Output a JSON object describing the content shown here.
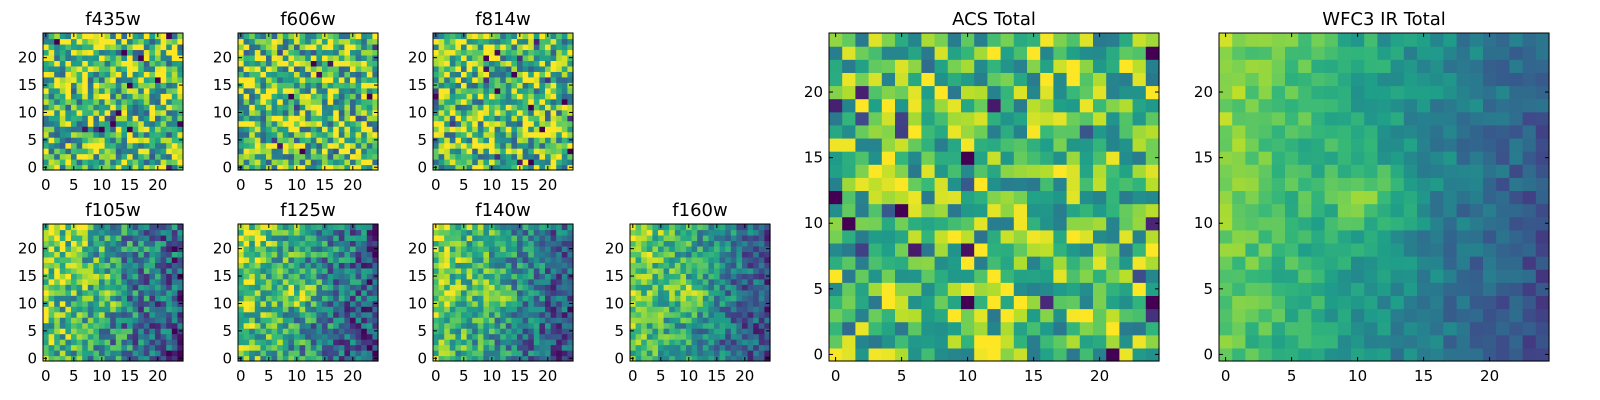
{
  "chart_data": [
    {
      "type": "heatmap",
      "title": "f435w",
      "xticks": [
        "0",
        "5",
        "10",
        "15",
        "20"
      ],
      "yticks": [
        "0",
        "5",
        "10",
        "15",
        "20"
      ],
      "xlim": [
        -0.5,
        24.5
      ],
      "ylim": [
        -0.5,
        24.5
      ],
      "grid_size": 25,
      "colormap": "viridis",
      "pattern": "noise",
      "noise": 0.42,
      "seed": 11
    },
    {
      "type": "heatmap",
      "title": "f606w",
      "xticks": [
        "0",
        "5",
        "10",
        "15",
        "20"
      ],
      "yticks": [
        "0",
        "5",
        "10",
        "15",
        "20"
      ],
      "xlim": [
        -0.5,
        24.5
      ],
      "ylim": [
        -0.5,
        24.5
      ],
      "grid_size": 25,
      "colormap": "viridis",
      "pattern": "noise",
      "noise": 0.42,
      "seed": 23
    },
    {
      "type": "heatmap",
      "title": "f814w",
      "xticks": [
        "0",
        "5",
        "10",
        "15",
        "20"
      ],
      "yticks": [
        "0",
        "5",
        "10",
        "15",
        "20"
      ],
      "xlim": [
        -0.5,
        24.5
      ],
      "ylim": [
        -0.5,
        24.5
      ],
      "grid_size": 25,
      "colormap": "viridis",
      "pattern": "noise",
      "noise": 0.42,
      "seed": 37
    },
    {
      "type": "heatmap",
      "title": "f105w",
      "xticks": [
        "0",
        "5",
        "10",
        "15",
        "20"
      ],
      "yticks": [
        "0",
        "5",
        "10",
        "15",
        "20"
      ],
      "xlim": [
        -0.5,
        24.5
      ],
      "ylim": [
        -0.5,
        24.5
      ],
      "grid_size": 25,
      "colormap": "viridis",
      "pattern": "gradient",
      "noise": 0.32,
      "seed": 41
    },
    {
      "type": "heatmap",
      "title": "f125w",
      "xticks": [
        "0",
        "5",
        "10",
        "15",
        "20"
      ],
      "yticks": [
        "0",
        "5",
        "10",
        "15",
        "20"
      ],
      "xlim": [
        -0.5,
        24.5
      ],
      "ylim": [
        -0.5,
        24.5
      ],
      "grid_size": 25,
      "colormap": "viridis",
      "pattern": "gradient",
      "noise": 0.3,
      "seed": 53
    },
    {
      "type": "heatmap",
      "title": "f140w",
      "xticks": [
        "0",
        "5",
        "10",
        "15",
        "20"
      ],
      "yticks": [
        "0",
        "5",
        "10",
        "15",
        "20"
      ],
      "xlim": [
        -0.5,
        24.5
      ],
      "ylim": [
        -0.5,
        24.5
      ],
      "grid_size": 25,
      "colormap": "viridis",
      "pattern": "gradient",
      "noise": 0.26,
      "seed": 67
    },
    {
      "type": "heatmap",
      "title": "f160w",
      "xticks": [
        "0",
        "5",
        "10",
        "15",
        "20"
      ],
      "yticks": [
        "0",
        "5",
        "10",
        "15",
        "20"
      ],
      "xlim": [
        -0.5,
        24.5
      ],
      "ylim": [
        -0.5,
        24.5
      ],
      "grid_size": 25,
      "colormap": "viridis",
      "pattern": "gradient",
      "noise": 0.24,
      "seed": 71
    },
    {
      "type": "heatmap",
      "title": "ACS Total",
      "xticks": [
        "0",
        "5",
        "10",
        "15",
        "20"
      ],
      "yticks": [
        "0",
        "5",
        "10",
        "15",
        "20"
      ],
      "xlim": [
        -0.5,
        24.5
      ],
      "ylim": [
        -0.5,
        24.5
      ],
      "grid_size": 25,
      "colormap": "viridis",
      "pattern": "noise",
      "noise": 0.32,
      "seed": 89
    },
    {
      "type": "heatmap",
      "title": "WFC3 IR Total",
      "xticks": [
        "0",
        "5",
        "10",
        "15",
        "20"
      ],
      "yticks": [
        "0",
        "5",
        "10",
        "15",
        "20"
      ],
      "xlim": [
        -0.5,
        24.5
      ],
      "ylim": [
        -0.5,
        24.5
      ],
      "grid_size": 25,
      "colormap": "viridis",
      "pattern": "gradient",
      "noise": 0.1,
      "seed": 97
    }
  ]
}
